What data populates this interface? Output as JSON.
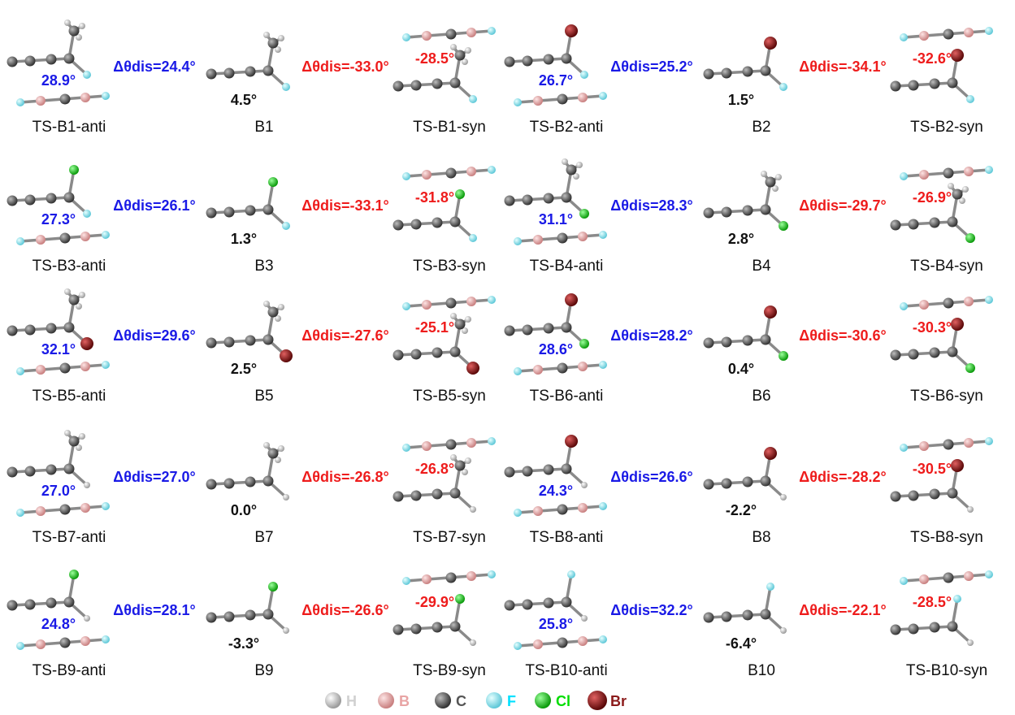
{
  "rows": [
    {
      "groups": [
        {
          "anti_label": "TS-B1-anti",
          "anti_angle": "28.9°",
          "delta_anti": "Δθdis=24.4°",
          "b_label": "B1",
          "b_angle": "4.5°",
          "delta_syn": "Δθdis=-33.0°",
          "syn_angle": "-28.5°",
          "syn_label": "TS-B1-syn"
        },
        {
          "anti_label": "TS-B2-anti",
          "anti_angle": "26.7°",
          "delta_anti": "Δθdis=25.2°",
          "b_label": "B2",
          "b_angle": "1.5°",
          "delta_syn": "Δθdis=-34.1°",
          "syn_angle": "-32.6°",
          "syn_label": "TS-B2-syn"
        }
      ]
    },
    {
      "groups": [
        {
          "anti_label": "TS-B3-anti",
          "anti_angle": "27.3°",
          "delta_anti": "Δθdis=26.1°",
          "b_label": "B3",
          "b_angle": "1.3°",
          "delta_syn": "Δθdis=-33.1°",
          "syn_angle": "-31.8°",
          "syn_label": "TS-B3-syn"
        },
        {
          "anti_label": "TS-B4-anti",
          "anti_angle": "31.1°",
          "delta_anti": "Δθdis=28.3°",
          "b_label": "B4",
          "b_angle": "2.8°",
          "delta_syn": "Δθdis=-29.7°",
          "syn_angle": "-26.9°",
          "syn_label": "TS-B4-syn"
        }
      ]
    },
    {
      "groups": [
        {
          "anti_label": "TS-B5-anti",
          "anti_angle": "32.1°",
          "delta_anti": "Δθdis=29.6°",
          "b_label": "B5",
          "b_angle": "2.5°",
          "delta_syn": "Δθdis=-27.6°",
          "syn_angle": "-25.1°",
          "syn_label": "TS-B5-syn"
        },
        {
          "anti_label": "TS-B6-anti",
          "anti_angle": "28.6°",
          "delta_anti": "Δθdis=28.2°",
          "b_label": "B6",
          "b_angle": "0.4°",
          "delta_syn": "Δθdis=-30.6°",
          "syn_angle": "-30.3°",
          "syn_label": "TS-B6-syn"
        }
      ]
    },
    {
      "groups": [
        {
          "anti_label": "TS-B7-anti",
          "anti_angle": "27.0°",
          "delta_anti": "Δθdis=27.0°",
          "b_label": "B7",
          "b_angle": "0.0°",
          "delta_syn": "Δθdis=-26.8°",
          "syn_angle": "-26.8°",
          "syn_label": "TS-B7-syn"
        },
        {
          "anti_label": "TS-B8-anti",
          "anti_angle": "24.3°",
          "delta_anti": "Δθdis=26.6°",
          "b_label": "B8",
          "b_angle": "-2.2°",
          "delta_syn": "Δθdis=-28.2°",
          "syn_angle": "-30.5°",
          "syn_label": "TS-B8-syn"
        }
      ]
    },
    {
      "groups": [
        {
          "anti_label": "TS-B9-anti",
          "anti_angle": "24.8°",
          "delta_anti": "Δθdis=28.1°",
          "b_label": "B9",
          "b_angle": "-3.3°",
          "delta_syn": "Δθdis=-26.6°",
          "syn_angle": "-29.9°",
          "syn_label": "TS-B9-syn"
        },
        {
          "anti_label": "TS-B10-anti",
          "anti_angle": "25.8°",
          "delta_anti": "Δθdis=32.2°",
          "b_label": "B10",
          "b_angle": "-6.4°",
          "delta_syn": "Δθdis=-22.1°",
          "syn_angle": "-28.5°",
          "syn_label": "TS-B10-syn"
        }
      ]
    }
  ],
  "legend": [
    {
      "symbol": "H",
      "color": "#d0d0d0"
    },
    {
      "symbol": "B",
      "color": "#e8a4a4"
    },
    {
      "symbol": "C",
      "color": "#555555"
    },
    {
      "symbol": "F",
      "color": "#00e0ff"
    },
    {
      "symbol": "Cl",
      "color": "#00dd00"
    },
    {
      "symbol": "Br",
      "color": "#8b1a1a"
    }
  ]
}
